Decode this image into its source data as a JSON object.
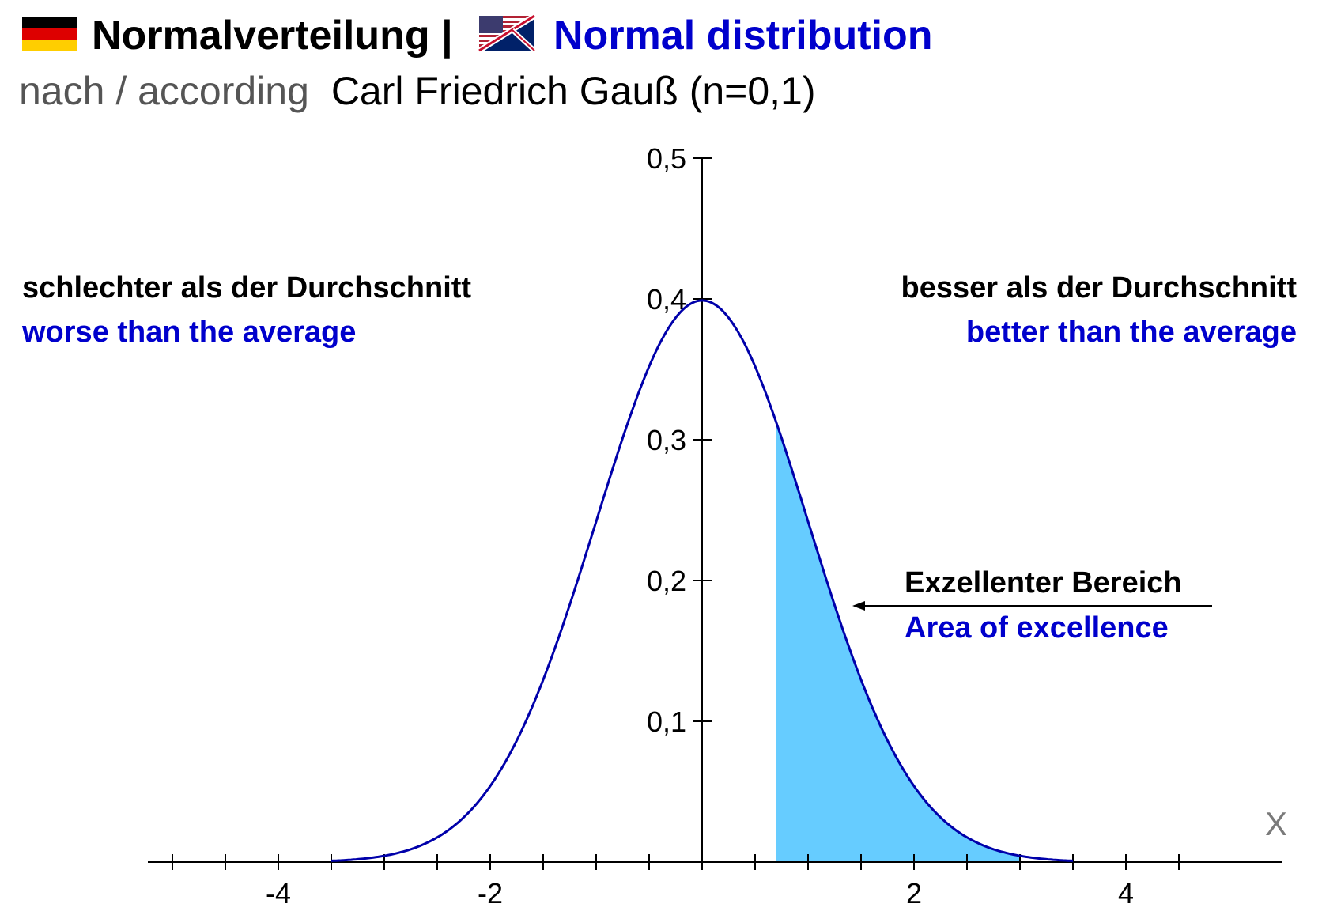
{
  "header": {
    "title_de": "Normalverteilung |",
    "title_en": "Normal distribution",
    "subtitle_prefix": "nach / according",
    "subtitle_main": "Carl Friedrich Gauß (n=0,1)",
    "flag_de_icon": "german-flag-icon",
    "flag_en_icon": "uk-us-flag-icon"
  },
  "annotations": {
    "left_de": "schlechter als der Durchschnitt",
    "left_en": "worse than the average",
    "right_de": "besser als der Durchschnitt",
    "right_en": "better than the average",
    "excellence_de": "Exzellenter Bereich",
    "excellence_en": "Area of excellence"
  },
  "colors": {
    "curve": "#0000aa",
    "english_text": "#0000cc",
    "shaded_area": "#66ccff",
    "subtitle_gray": "#555555",
    "axis_label_gray": "#7a7a7a"
  },
  "chart_data": {
    "type": "line",
    "title": "Normalverteilung | Normal distribution",
    "function": "standard normal density",
    "mean": 0,
    "sd": 1,
    "xlabel": "X",
    "ylabel": "",
    "xlim": [
      -5,
      5.4
    ],
    "ylim": [
      0,
      0.5
    ],
    "x_range": [
      -3.5,
      3.5
    ],
    "x_ticks": [
      -5,
      -4.5,
      -4,
      -3.5,
      -3,
      -2.5,
      -2,
      -1.5,
      -1,
      -0.5,
      0,
      0.5,
      1,
      1.5,
      2,
      2.5,
      3,
      3.5,
      4,
      4.5
    ],
    "x_tick_labels": [
      {
        "value": -4,
        "label": "-4"
      },
      {
        "value": -2,
        "label": "-2"
      },
      {
        "value": 2,
        "label": "2"
      },
      {
        "value": 4,
        "label": "4"
      }
    ],
    "y_ticks": [
      {
        "value": 0.1,
        "label": "0,1"
      },
      {
        "value": 0.2,
        "label": "0,2"
      },
      {
        "value": 0.3,
        "label": "0,3"
      },
      {
        "value": 0.4,
        "label": "0,4"
      },
      {
        "value": 0.5,
        "label": "0,5"
      }
    ],
    "shaded_region": {
      "from": 0.7,
      "to": 3.0,
      "label": "Area of excellence"
    },
    "grid": false,
    "legend": "none"
  }
}
